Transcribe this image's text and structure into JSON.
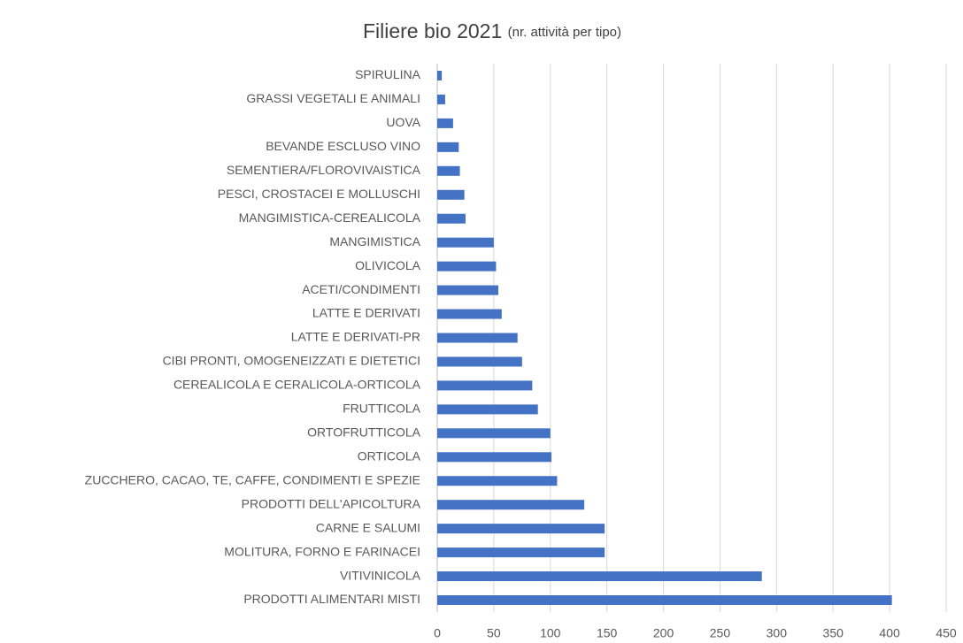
{
  "chart_data": {
    "type": "bar",
    "orientation": "horizontal",
    "title": "Filiere bio 2021",
    "subtitle": "(nr. attività per tipo)",
    "categories": [
      "SPIRULINA",
      "GRASSI VEGETALI E ANIMALI",
      "UOVA",
      "BEVANDE ESCLUSO VINO",
      "SEMENTIERA/FLOROVIVAISTICA",
      "PESCI, CROSTACEI E MOLLUSCHI",
      "MANGIMISTICA-CEREALICOLA",
      "MANGIMISTICA",
      "OLIVICOLA",
      "ACETI/CONDIMENTI",
      "LATTE E DERIVATI",
      "LATTE E DERIVATI-PR",
      "CIBI PRONTI, OMOGENEIZZATI E DIETETICI",
      "CEREALICOLA E CERALICOLA-ORTICOLA",
      "FRUTTICOLA",
      "ORTOFRUTTICOLA",
      "ORTICOLA",
      "ZUCCHERO, CACAO, TE, CAFFE, CONDIMENTI E SPEZIE",
      "PRODOTTI DELL'APICOLTURA",
      "CARNE E SALUMI",
      "MOLITURA, FORNO E FARINACEI",
      "VITIVINICOLA",
      "PRODOTTI ALIMENTARI MISTI"
    ],
    "values": [
      4,
      7,
      14,
      19,
      20,
      24,
      25,
      50,
      52,
      54,
      57,
      71,
      75,
      84,
      89,
      100,
      101,
      106,
      130,
      148,
      148,
      287,
      402
    ],
    "color": "#4472c4",
    "xlim": [
      0,
      450
    ],
    "xticks": [
      0,
      50,
      100,
      150,
      200,
      250,
      300,
      350,
      400,
      450
    ],
    "grid": true
  }
}
